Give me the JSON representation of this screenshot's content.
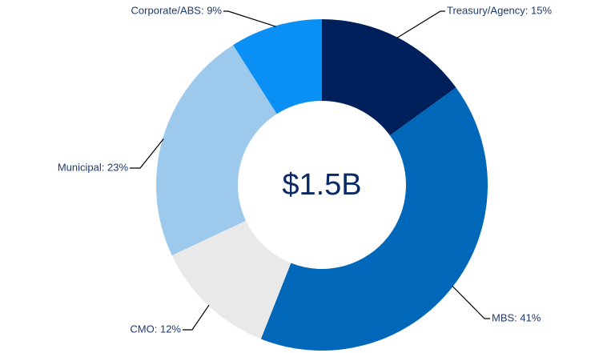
{
  "chart_data": {
    "type": "donut",
    "center_label": "$1.5B",
    "values": [
      15,
      41,
      12,
      23,
      9
    ],
    "value_labels": [
      "Treasury/Agency: 15%",
      "MBS: 41%",
      "CMO: 12%",
      "Municipal: 23%",
      "Corporate/ABS: 9%"
    ],
    "colors": [
      "#00205b",
      "#0067b9",
      "#e9e9e9",
      "#9dc9ec",
      "#0a90f5"
    ]
  }
}
